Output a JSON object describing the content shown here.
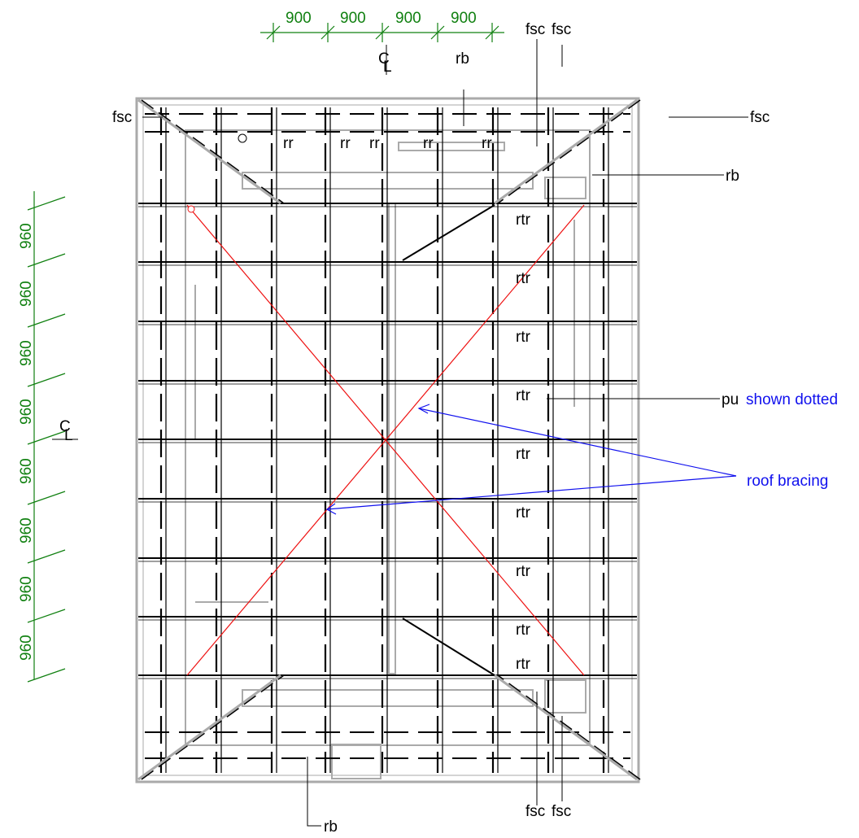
{
  "colors": {
    "dimension": "#108010",
    "annotation": "#1010ee",
    "bracing": "#ee1111",
    "structure": "#000000",
    "outline": "#aaaaaa"
  },
  "dimensions": {
    "top_spacings": [
      "900",
      "900",
      "900",
      "900"
    ],
    "left_spacings": [
      "960",
      "960",
      "960",
      "960",
      "960",
      "960",
      "960",
      "960"
    ]
  },
  "centerline_symbol": "CL",
  "labels": {
    "fsc": "fsc",
    "rb": "rb",
    "rr": "rr",
    "rtr": "rtr",
    "pu": "pu"
  },
  "notes": {
    "shown_dotted": "shown  dotted",
    "roof_bracing": "roof bracing"
  }
}
